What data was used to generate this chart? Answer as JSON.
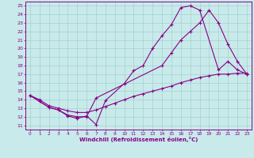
{
  "xlabel": "Windchill (Refroidissement éolien,°C)",
  "background_color": "#c8eaea",
  "grid_color": "#a8d0d0",
  "line_color": "#880088",
  "xlim": [
    -0.5,
    23.5
  ],
  "ylim": [
    10.5,
    25.5
  ],
  "xticks": [
    0,
    1,
    2,
    3,
    4,
    5,
    6,
    7,
    8,
    9,
    10,
    11,
    12,
    13,
    14,
    15,
    16,
    17,
    18,
    19,
    20,
    21,
    22,
    23
  ],
  "yticks": [
    11,
    12,
    13,
    14,
    15,
    16,
    17,
    18,
    19,
    20,
    21,
    22,
    23,
    24,
    25
  ],
  "line1_x": [
    0,
    1,
    2,
    3,
    4,
    5,
    6,
    7,
    8,
    10,
    11,
    12,
    13,
    14,
    15,
    16,
    17,
    18,
    20,
    21,
    22,
    23
  ],
  "line1_y": [
    14.5,
    13.8,
    13.1,
    12.8,
    12.1,
    11.8,
    12.1,
    11.1,
    13.9,
    15.9,
    17.4,
    18.0,
    20.0,
    21.5,
    22.8,
    24.8,
    25.0,
    24.5,
    17.5,
    18.5,
    17.5,
    17.0
  ],
  "line2_x": [
    0,
    2,
    3,
    4,
    5,
    6,
    7,
    14,
    15,
    16,
    17,
    18,
    19,
    20,
    21,
    22,
    23
  ],
  "line2_y": [
    14.5,
    13.1,
    12.8,
    12.2,
    12.0,
    12.0,
    14.2,
    18.0,
    19.5,
    21.0,
    22.0,
    23.0,
    24.5,
    23.0,
    20.5,
    18.5,
    17.0
  ],
  "line3_x": [
    0,
    1,
    2,
    3,
    4,
    5,
    6,
    7,
    8,
    9,
    10,
    11,
    12,
    13,
    14,
    15,
    16,
    17,
    18,
    19,
    20,
    21,
    22,
    23
  ],
  "line3_y": [
    14.5,
    14.0,
    13.3,
    13.0,
    12.7,
    12.5,
    12.5,
    12.8,
    13.2,
    13.6,
    14.0,
    14.4,
    14.7,
    15.0,
    15.3,
    15.6,
    16.0,
    16.3,
    16.6,
    16.8,
    17.0,
    17.0,
    17.1,
    17.1
  ]
}
